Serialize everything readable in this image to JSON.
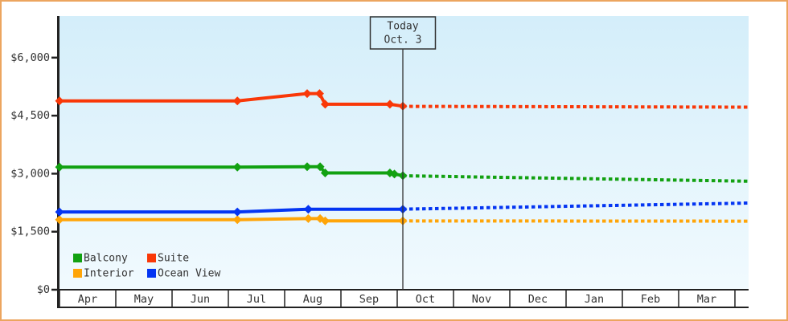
{
  "chart_data": {
    "type": "line",
    "title": "",
    "x_axis": {
      "unit": "month",
      "labels": [
        "Apr",
        "May",
        "Jun",
        "Jul",
        "Aug",
        "Sep",
        "Oct",
        "Nov",
        "Dec",
        "Jan",
        "Feb",
        "Mar"
      ],
      "range_months": [
        0,
        12.25
      ]
    },
    "y_axis": {
      "unit": "USD",
      "tick_values": [
        0,
        1500,
        3000,
        4500,
        6000
      ],
      "tick_labels": [
        "$0",
        "$1,500",
        "$3,000",
        "$4,500",
        "$6,000"
      ],
      "range": [
        0,
        7075
      ],
      "grid": false
    },
    "today_marker": {
      "label_line1": "Today",
      "label_line2": "Oct. 3",
      "x_months": 6.1
    },
    "legend_position": "bottom-left",
    "legend": [
      {
        "label": "Balcony",
        "color": "#12A111"
      },
      {
        "label": "Suite",
        "color": "#F93808"
      },
      {
        "label": "Interior",
        "color": "#FFA508"
      },
      {
        "label": "Ocean View",
        "color": "#0435F2"
      }
    ],
    "series": [
      {
        "name": "Balcony",
        "color": "#12A111",
        "actual_points": [
          [
            0,
            3170
          ],
          [
            3.16,
            3170
          ],
          [
            4.4,
            3180
          ],
          [
            4.63,
            3180
          ],
          [
            4.72,
            3020
          ],
          [
            5.87,
            3020
          ],
          [
            5.95,
            2990
          ],
          [
            6.1,
            2950
          ]
        ],
        "forecast_points": [
          [
            6.1,
            2945
          ],
          [
            12.24,
            2805
          ]
        ]
      },
      {
        "name": "Suite",
        "color": "#F93808",
        "actual_points": [
          [
            0,
            4880
          ],
          [
            3.16,
            4880
          ],
          [
            4.4,
            5070
          ],
          [
            4.62,
            5070
          ],
          [
            4.72,
            4795
          ],
          [
            5.87,
            4795
          ],
          [
            6.1,
            4745
          ]
        ],
        "forecast_points": [
          [
            6.1,
            4740
          ],
          [
            12.24,
            4720
          ]
        ]
      },
      {
        "name": "Interior",
        "color": "#FFA508",
        "actual_points": [
          [
            0,
            1810
          ],
          [
            3.16,
            1810
          ],
          [
            4.42,
            1840
          ],
          [
            4.63,
            1840
          ],
          [
            4.72,
            1780
          ],
          [
            6.1,
            1780
          ]
        ],
        "forecast_points": [
          [
            6.1,
            1778
          ],
          [
            12.24,
            1772
          ]
        ]
      },
      {
        "name": "Ocean View",
        "color": "#0435F2",
        "actual_points": [
          [
            0,
            2010
          ],
          [
            3.16,
            2010
          ],
          [
            4.42,
            2080
          ],
          [
            6.1,
            2080
          ]
        ],
        "forecast_points": [
          [
            6.1,
            2082
          ],
          [
            12.24,
            2240
          ]
        ]
      }
    ],
    "styles": {
      "plot_bg_top": "#D4EEFA",
      "plot_bg_bottom": "#F1FAFE",
      "axis_color": "#222222",
      "text_color": "#333333",
      "frame_border_color": "#ECA55F"
    }
  }
}
